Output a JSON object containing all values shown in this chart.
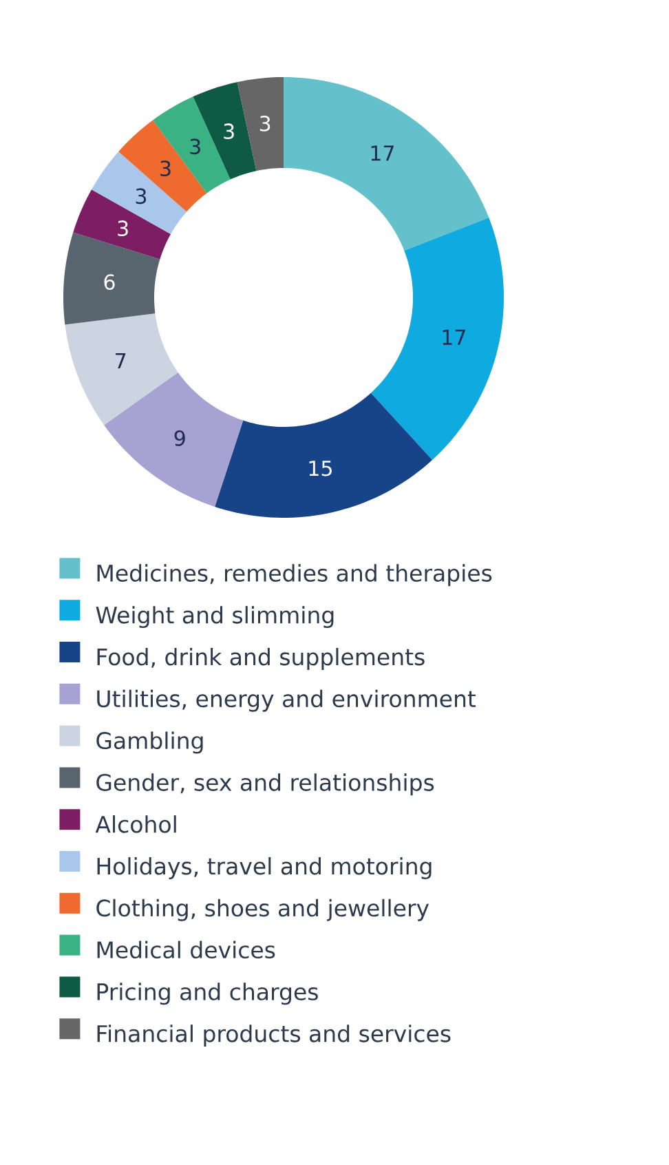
{
  "chart_data": {
    "type": "donut",
    "categories": [
      "Medicines, remedies and therapies",
      "Weight and slimming",
      "Food, drink and supplements",
      "Utilities, energy and environment",
      "Gambling",
      "Gender, sex and relationships",
      "Alcohol",
      "Holidays, travel and motoring",
      "Clothing, shoes and jewellery",
      "Medical devices",
      "Pricing and charges",
      "Financial products and services"
    ],
    "values": [
      17,
      17,
      15,
      9,
      7,
      6,
      3,
      3,
      3,
      3,
      3,
      3
    ],
    "colors": [
      "#64c1cb",
      "#0eaae0",
      "#174489",
      "#a6a3d2",
      "#cbd4e0",
      "#58656e",
      "#7d1d63",
      "#a9c7ea",
      "#ee6a2e",
      "#3bb283",
      "#0e5a45",
      "#666666"
    ],
    "data_labels": true,
    "legend": "bottom"
  }
}
